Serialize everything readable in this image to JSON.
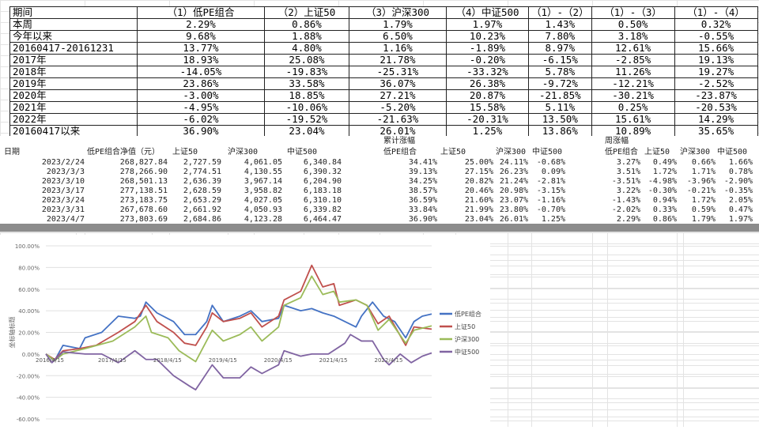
{
  "summary": {
    "headers": [
      "期间",
      "（1）低PE组合",
      "（2）上证50",
      "（3）沪深300",
      "（4）中证500",
      "（1）-（2）",
      "（1）-（3）",
      "（1）-（4）"
    ],
    "rows": [
      [
        "本周",
        "2.29%",
        "0.86%",
        "1.79%",
        "1.97%",
        "1.43%",
        "0.50%",
        "0.32%"
      ],
      [
        "今年以来",
        "9.68%",
        "1.88%",
        "6.50%",
        "10.23%",
        "7.80%",
        "3.18%",
        "-0.55%"
      ],
      [
        "20160417-20161231",
        "13.77%",
        "4.80%",
        "1.16%",
        "-1.89%",
        "8.97%",
        "12.61%",
        "15.66%"
      ],
      [
        "2017年",
        "18.93%",
        "25.08%",
        "21.78%",
        "-0.20%",
        "-6.15%",
        "-2.85%",
        "19.13%"
      ],
      [
        "2018年",
        "-14.05%",
        "-19.83%",
        "-25.31%",
        "-33.32%",
        "5.78%",
        "11.26%",
        "19.27%"
      ],
      [
        "2019年",
        "23.86%",
        "33.58%",
        "36.07%",
        "26.38%",
        "-9.72%",
        "-12.21%",
        "-2.52%"
      ],
      [
        "2020年",
        "-3.00%",
        "18.85%",
        "27.21%",
        "20.87%",
        "-21.85%",
        "-30.21%",
        "-23.87%"
      ],
      [
        "2021年",
        "-4.95%",
        "-10.06%",
        "-5.20%",
        "15.58%",
        "5.11%",
        "0.25%",
        "-20.53%"
      ],
      [
        "2022年",
        "-6.02%",
        "-19.52%",
        "-21.63%",
        "-20.31%",
        "13.50%",
        "15.61%",
        "14.29%"
      ],
      [
        "20160417以来",
        "36.90%",
        "23.04%",
        "26.01%",
        "1.25%",
        "13.86%",
        "10.89%",
        "35.65%"
      ]
    ]
  },
  "weekly": {
    "cum_title": "累计涨幅",
    "week_title": "周涨幅",
    "headers": [
      "日期",
      "低PE组合净值（元）",
      "上证50",
      "沪深300",
      "中证500",
      "低PE组合",
      "上证50",
      "沪深300",
      "中证500",
      "低PE组合",
      "上证50",
      "沪深300",
      "中证500"
    ],
    "rows": [
      [
        "2023/2/24",
        "268,827.84",
        "2,727.59",
        "4,061.05",
        "6,340.84",
        "34.41%",
        "25.00%",
        "24.11%",
        "-0.68%",
        "3.27%",
        "0.49%",
        "0.66%",
        "1.66%"
      ],
      [
        "2023/3/3",
        "278,266.90",
        "2,774.51",
        "4,130.55",
        "6,390.32",
        "39.13%",
        "27.15%",
        "26.23%",
        "0.09%",
        "3.51%",
        "1.72%",
        "1.71%",
        "0.78%"
      ],
      [
        "2023/3/10",
        "268,501.13",
        "2,636.39",
        "3,967.14",
        "6,204.90",
        "34.25%",
        "20.82%",
        "21.24%",
        "-2.81%",
        "-3.51%",
        "-4.98%",
        "-3.96%",
        "-2.90%"
      ],
      [
        "2023/3/17",
        "277,138.51",
        "2,628.59",
        "3,958.82",
        "6,183.18",
        "38.57%",
        "20.46%",
        "20.98%",
        "-3.15%",
        "3.22%",
        "-0.30%",
        "-0.21%",
        "-0.35%"
      ],
      [
        "2023/3/24",
        "273,183.75",
        "2,653.29",
        "4,027.05",
        "6,310.10",
        "36.59%",
        "21.60%",
        "23.07%",
        "-1.16%",
        "-1.43%",
        "0.94%",
        "1.72%",
        "2.05%"
      ],
      [
        "2023/3/31",
        "267,678.60",
        "2,661.92",
        "4,050.93",
        "6,339.82",
        "33.84%",
        "21.99%",
        "23.80%",
        "-0.70%",
        "-2.02%",
        "0.33%",
        "0.59%",
        "0.47%"
      ],
      [
        "2023/4/7",
        "273,803.69",
        "2,684.86",
        "4,123.28",
        "6,464.47",
        "36.90%",
        "23.04%",
        "26.01%",
        "1.25%",
        "2.29%",
        "0.86%",
        "1.79%",
        "1.97%"
      ]
    ]
  },
  "chart_data": {
    "type": "line",
    "title": "",
    "ylabel": "坐标轴标题",
    "xlabel": "",
    "ylim": [
      -60,
      100
    ],
    "yticks": [
      "100.00%",
      "80.00%",
      "60.00%",
      "40.00%",
      "20.00%",
      "0.00%",
      "-20.00%",
      "-40.00%",
      "-60.00%"
    ],
    "ytick_values": [
      100,
      80,
      60,
      40,
      20,
      0,
      -20,
      -40,
      -60
    ],
    "xlim": [
      2016.29,
      2023.27
    ],
    "xticks": [
      "2016/4/15",
      "2017/4/15",
      "2018/4/15",
      "2019/4/15",
      "2020/4/15",
      "2021/4/15",
      "2022/4/15"
    ],
    "xtick_values": [
      2016.29,
      2017.29,
      2018.29,
      2019.29,
      2020.29,
      2021.29,
      2022.29
    ],
    "legend": "right",
    "series": [
      {
        "name": "低PE组合",
        "color": "#4472c4",
        "points": [
          [
            2016.29,
            0
          ],
          [
            2016.45,
            -6
          ],
          [
            2016.6,
            8
          ],
          [
            2016.9,
            5
          ],
          [
            2017.0,
            15
          ],
          [
            2017.3,
            20
          ],
          [
            2017.6,
            35
          ],
          [
            2017.9,
            33
          ],
          [
            2018.0,
            35
          ],
          [
            2018.1,
            48
          ],
          [
            2018.3,
            38
          ],
          [
            2018.6,
            30
          ],
          [
            2018.8,
            18
          ],
          [
            2019.0,
            18
          ],
          [
            2019.2,
            30
          ],
          [
            2019.3,
            45
          ],
          [
            2019.5,
            30
          ],
          [
            2019.8,
            35
          ],
          [
            2020.0,
            40
          ],
          [
            2020.2,
            30
          ],
          [
            2020.5,
            33
          ],
          [
            2020.6,
            45
          ],
          [
            2020.9,
            40
          ],
          [
            2021.1,
            42
          ],
          [
            2021.3,
            38
          ],
          [
            2021.5,
            35
          ],
          [
            2021.7,
            30
          ],
          [
            2021.9,
            25
          ],
          [
            2022.0,
            35
          ],
          [
            2022.2,
            48
          ],
          [
            2022.4,
            35
          ],
          [
            2022.6,
            30
          ],
          [
            2022.8,
            15
          ],
          [
            2022.95,
            30
          ],
          [
            2023.1,
            35
          ],
          [
            2023.27,
            37
          ]
        ]
      },
      {
        "name": "上证50",
        "color": "#c0504d",
        "points": [
          [
            2016.29,
            0
          ],
          [
            2016.45,
            -5
          ],
          [
            2016.6,
            3
          ],
          [
            2016.9,
            5
          ],
          [
            2017.2,
            8
          ],
          [
            2017.6,
            20
          ],
          [
            2017.9,
            30
          ],
          [
            2018.1,
            45
          ],
          [
            2018.3,
            30
          ],
          [
            2018.6,
            20
          ],
          [
            2018.8,
            10
          ],
          [
            2019.0,
            8
          ],
          [
            2019.2,
            25
          ],
          [
            2019.3,
            38
          ],
          [
            2019.5,
            30
          ],
          [
            2019.8,
            33
          ],
          [
            2020.0,
            38
          ],
          [
            2020.2,
            25
          ],
          [
            2020.5,
            35
          ],
          [
            2020.6,
            50
          ],
          [
            2020.9,
            58
          ],
          [
            2021.1,
            82
          ],
          [
            2021.3,
            62
          ],
          [
            2021.5,
            65
          ],
          [
            2021.6,
            45
          ],
          [
            2021.9,
            50
          ],
          [
            2022.1,
            45
          ],
          [
            2022.3,
            28
          ],
          [
            2022.5,
            35
          ],
          [
            2022.8,
            8
          ],
          [
            2022.95,
            25
          ],
          [
            2023.27,
            23
          ]
        ]
      },
      {
        "name": "沪深300",
        "color": "#9bbb59",
        "points": [
          [
            2016.29,
            0
          ],
          [
            2016.45,
            -6
          ],
          [
            2016.6,
            0
          ],
          [
            2017.0,
            5
          ],
          [
            2017.5,
            12
          ],
          [
            2017.9,
            25
          ],
          [
            2018.1,
            35
          ],
          [
            2018.2,
            20
          ],
          [
            2018.5,
            15
          ],
          [
            2018.7,
            3
          ],
          [
            2019.0,
            -7
          ],
          [
            2019.3,
            22
          ],
          [
            2019.5,
            12
          ],
          [
            2019.8,
            18
          ],
          [
            2020.0,
            25
          ],
          [
            2020.2,
            12
          ],
          [
            2020.5,
            25
          ],
          [
            2020.6,
            45
          ],
          [
            2020.9,
            52
          ],
          [
            2021.1,
            72
          ],
          [
            2021.3,
            55
          ],
          [
            2021.5,
            58
          ],
          [
            2021.6,
            48
          ],
          [
            2021.9,
            50
          ],
          [
            2022.1,
            45
          ],
          [
            2022.3,
            22
          ],
          [
            2022.5,
            32
          ],
          [
            2022.8,
            10
          ],
          [
            2022.95,
            22
          ],
          [
            2023.27,
            26
          ]
        ]
      },
      {
        "name": "中证500",
        "color": "#8064a2",
        "points": [
          [
            2016.29,
            0
          ],
          [
            2016.4,
            -8
          ],
          [
            2016.6,
            2
          ],
          [
            2017.0,
            0
          ],
          [
            2017.3,
            0
          ],
          [
            2017.6,
            -8
          ],
          [
            2017.9,
            3
          ],
          [
            2018.1,
            -5
          ],
          [
            2018.3,
            -5
          ],
          [
            2018.6,
            -20
          ],
          [
            2018.9,
            -30
          ],
          [
            2019.0,
            -33
          ],
          [
            2019.3,
            -10
          ],
          [
            2019.5,
            -22
          ],
          [
            2019.8,
            -22
          ],
          [
            2020.0,
            -12
          ],
          [
            2020.2,
            -18
          ],
          [
            2020.5,
            -10
          ],
          [
            2020.6,
            3
          ],
          [
            2020.9,
            -2
          ],
          [
            2021.1,
            0
          ],
          [
            2021.4,
            0
          ],
          [
            2021.7,
            10
          ],
          [
            2021.8,
            18
          ],
          [
            2022.0,
            12
          ],
          [
            2022.2,
            12
          ],
          [
            2022.4,
            -5
          ],
          [
            2022.5,
            -10
          ],
          [
            2022.7,
            0
          ],
          [
            2022.9,
            -8
          ],
          [
            2023.1,
            -2
          ],
          [
            2023.27,
            1
          ]
        ]
      }
    ]
  }
}
